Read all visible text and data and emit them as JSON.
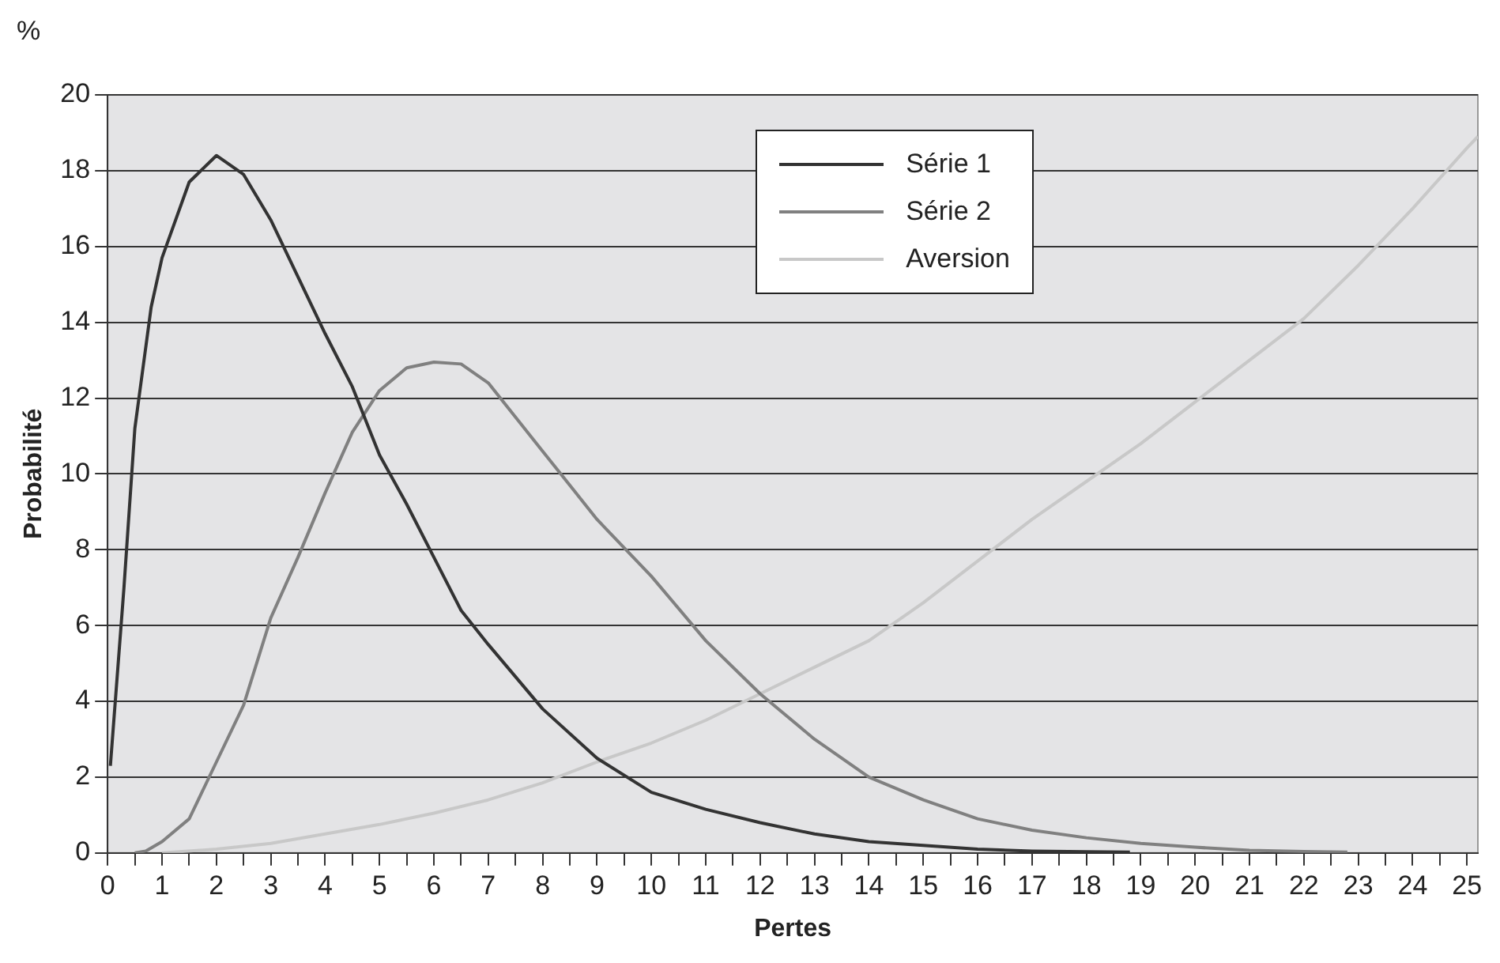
{
  "chart_data": {
    "type": "line",
    "xlabel": "Pertes",
    "ylabel": "Probabilité",
    "annotations": [
      "%"
    ],
    "xlim": [
      0,
      25.2
    ],
    "ylim": [
      0,
      20
    ],
    "yticks": [
      0,
      2,
      4,
      6,
      8,
      10,
      12,
      14,
      16,
      18,
      20
    ],
    "xticks": [
      0,
      {
        "value": 0.5,
        "label": null
      },
      1,
      {
        "value": 1.5,
        "label": null
      },
      2,
      {
        "value": 2.5,
        "label": null
      },
      3,
      {
        "value": 3.5,
        "label": null
      },
      4,
      {
        "value": 4.5,
        "label": null
      },
      5,
      {
        "value": 5.5,
        "label": null
      },
      6,
      {
        "value": 6.5,
        "label": null
      },
      7,
      {
        "value": 7.5,
        "label": null
      },
      8,
      {
        "value": 8.5,
        "label": null
      },
      9,
      {
        "value": 9.5,
        "label": null
      },
      10,
      {
        "value": 10.5,
        "label": null
      },
      11,
      {
        "value": 11.5,
        "label": null
      },
      12,
      {
        "value": 12.5,
        "label": null
      },
      13,
      {
        "value": 13.5,
        "label": null
      },
      14,
      {
        "value": 14.5,
        "label": null
      },
      15,
      {
        "value": 15.5,
        "label": null
      },
      16,
      {
        "value": 16.5,
        "label": null
      },
      17,
      {
        "value": 17.5,
        "label": null
      },
      18,
      {
        "value": 18.5,
        "label": null
      },
      19,
      {
        "value": 19.5,
        "label": null
      },
      20,
      {
        "value": 20.5,
        "label": null
      },
      21,
      {
        "value": 21.5,
        "label": null
      },
      22,
      {
        "value": 22.5,
        "label": null
      },
      23,
      {
        "value": 23.5,
        "label": null
      },
      24,
      {
        "value": 24.5,
        "label": null
      },
      25
    ],
    "grid": "y",
    "legend": "top right",
    "marker": "none",
    "line_style": "solid",
    "series": [
      {
        "name": "Série 1",
        "color": "#333333",
        "x": [
          0.05,
          0.3,
          0.5,
          0.8,
          1,
          1.5,
          2,
          2.5,
          3,
          3.5,
          4,
          4.5,
          5,
          5.5,
          6,
          6.5,
          7,
          8,
          9,
          10,
          11,
          12,
          13,
          14,
          15,
          16,
          17,
          18,
          18.8
        ],
        "values": [
          2.3,
          7,
          11.2,
          14.4,
          15.7,
          17.7,
          18.4,
          17.9,
          16.7,
          15.2,
          13.7,
          12.3,
          10.5,
          9.2,
          7.8,
          6.4,
          5.5,
          3.8,
          2.5,
          1.6,
          1.15,
          0.8,
          0.5,
          0.3,
          0.2,
          0.1,
          0.05,
          0.03,
          0.02
        ]
      },
      {
        "name": "Série 2",
        "color": "#808080",
        "x": [
          0.5,
          0.7,
          1,
          1.5,
          2,
          2.5,
          3,
          3.5,
          4,
          4.5,
          5,
          5.5,
          6,
          6.5,
          7,
          7.5,
          8,
          8.5,
          9,
          10,
          11,
          12,
          13,
          14,
          15,
          16,
          17,
          18,
          19,
          20,
          21,
          22,
          22.8
        ],
        "values": [
          0,
          0.05,
          0.3,
          0.9,
          2.4,
          3.9,
          6.2,
          7.8,
          9.5,
          11.1,
          12.2,
          12.8,
          12.95,
          12.9,
          12.4,
          11.5,
          10.6,
          9.7,
          8.8,
          7.3,
          5.6,
          4.2,
          3,
          2,
          1.4,
          0.9,
          0.6,
          0.4,
          0.25,
          0.15,
          0.07,
          0.04,
          0.02
        ]
      },
      {
        "name": "Aversion",
        "color": "#c8c8c8",
        "x": [
          1,
          2,
          3,
          4,
          5,
          6,
          7,
          8,
          9,
          10,
          11,
          12,
          13,
          14,
          15,
          16,
          17,
          18,
          19,
          20,
          21,
          22,
          23,
          24,
          25,
          25.2
        ],
        "values": [
          0,
          0.1,
          0.25,
          0.5,
          0.75,
          1.05,
          1.4,
          1.85,
          2.4,
          2.9,
          3.5,
          4.2,
          4.9,
          5.6,
          6.6,
          7.7,
          8.8,
          9.8,
          10.8,
          11.9,
          13,
          14.1,
          15.5,
          17,
          18.6,
          18.9
        ]
      }
    ]
  }
}
